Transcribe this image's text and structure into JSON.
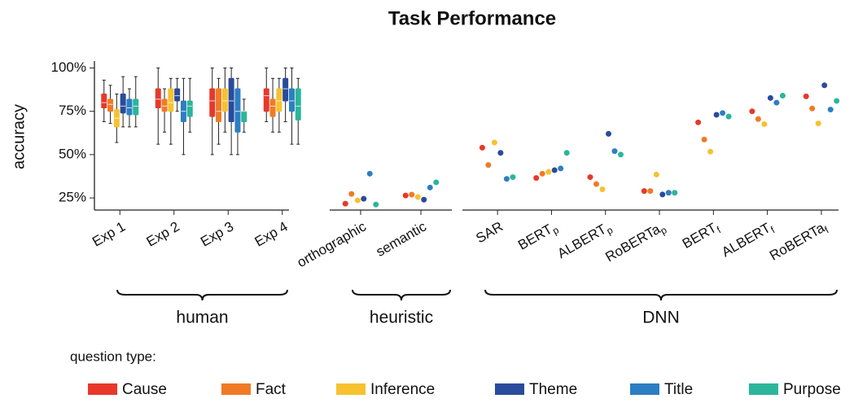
{
  "title": "Task Performance",
  "ylabel": "accuracy",
  "legend_title": "question type:",
  "ylim": [
    18,
    104
  ],
  "yticks": [
    {
      "value": 25,
      "label": "25%"
    },
    {
      "value": 50,
      "label": "50%"
    },
    {
      "value": 75,
      "label": "75%"
    },
    {
      "value": 100,
      "label": "100%"
    }
  ],
  "grid": false,
  "chart_data": [
    {
      "type": "box",
      "group_label": "human",
      "categories": [
        "Exp 1",
        "Exp 2",
        "Exp 3",
        "Exp 4"
      ],
      "series": [
        {
          "name": "Cause",
          "color": "#e8382a",
          "values": [
            {
              "min": 69,
              "q1": 77,
              "median": 80,
              "q3": 85,
              "max": 93
            },
            {
              "min": 56,
              "q1": 77,
              "median": 82,
              "q3": 88,
              "max": 100
            },
            {
              "min": 50,
              "q1": 72,
              "median": 81,
              "q3": 88,
              "max": 100
            },
            {
              "min": 69,
              "q1": 75,
              "median": 84,
              "q3": 88,
              "max": 100
            }
          ]
        },
        {
          "name": "Fact",
          "color": "#f07a26",
          "values": [
            {
              "min": 68,
              "q1": 75,
              "median": 79,
              "q3": 82,
              "max": 90
            },
            {
              "min": 63,
              "q1": 75,
              "median": 78,
              "q3": 82,
              "max": 88
            },
            {
              "min": 56,
              "q1": 69,
              "median": 75,
              "q3": 88,
              "max": 94
            },
            {
              "min": 63,
              "q1": 72,
              "median": 78,
              "q3": 82,
              "max": 94
            }
          ]
        },
        {
          "name": "Inference",
          "color": "#f6c230",
          "values": [
            {
              "min": 57,
              "q1": 66,
              "median": 71,
              "q3": 76,
              "max": 85
            },
            {
              "min": 56,
              "q1": 75,
              "median": 80,
              "q3": 88,
              "max": 94
            },
            {
              "min": 63,
              "q1": 75,
              "median": 81,
              "q3": 88,
              "max": 100
            },
            {
              "min": 63,
              "q1": 75,
              "median": 81,
              "q3": 88,
              "max": 94
            }
          ]
        },
        {
          "name": "Theme",
          "color": "#2a4b9b",
          "values": [
            {
              "min": 66,
              "q1": 74,
              "median": 78,
              "q3": 85,
              "max": 95
            },
            {
              "min": 75,
              "q1": 81,
              "median": 84,
              "q3": 88,
              "max": 94
            },
            {
              "min": 50,
              "q1": 69,
              "median": 81,
              "q3": 94,
              "max": 100
            },
            {
              "min": 69,
              "q1": 81,
              "median": 88,
              "q3": 94,
              "max": 100
            }
          ]
        },
        {
          "name": "Title",
          "color": "#2d7ec2",
          "values": [
            {
              "min": 66,
              "q1": 73,
              "median": 77,
              "q3": 82,
              "max": 88
            },
            {
              "min": 50,
              "q1": 69,
              "median": 75,
              "q3": 81,
              "max": 94
            },
            {
              "min": 50,
              "q1": 63,
              "median": 75,
              "q3": 88,
              "max": 94
            },
            {
              "min": 56,
              "q1": 75,
              "median": 81,
              "q3": 88,
              "max": 100
            }
          ]
        },
        {
          "name": "Purpose",
          "color": "#2bb59a",
          "values": [
            {
              "min": 66,
              "q1": 73,
              "median": 78,
              "q3": 82,
              "max": 95
            },
            {
              "min": 63,
              "q1": 72,
              "median": 78,
              "q3": 81,
              "max": 94
            },
            {
              "min": 63,
              "q1": 69,
              "median": 75,
              "q3": 75,
              "max": 82
            },
            {
              "min": 56,
              "q1": 70,
              "median": 78,
              "q3": 88,
              "max": 94
            }
          ]
        }
      ]
    },
    {
      "type": "scatter",
      "group_label": "heuristic",
      "categories": [
        "orthographic",
        "semantic"
      ],
      "series": [
        {
          "name": "Cause",
          "color": "#e8382a",
          "values": [
            21.7,
            26.4
          ]
        },
        {
          "name": "Fact",
          "color": "#f07a26",
          "values": [
            27.3,
            26.9
          ]
        },
        {
          "name": "Inference",
          "color": "#f6c230",
          "values": [
            23.6,
            25.5
          ]
        },
        {
          "name": "Theme",
          "color": "#2a4b9b",
          "values": [
            24.5,
            24
          ]
        },
        {
          "name": "Title",
          "color": "#2d7ec2",
          "values": [
            39,
            31
          ]
        },
        {
          "name": "Purpose",
          "color": "#2bb59a",
          "values": [
            21.2,
            34
          ]
        }
      ]
    },
    {
      "type": "scatter",
      "group_label": "DNN",
      "categories": [
        "SAR",
        "BERT",
        "ALBERT",
        "RoBERTa",
        "BERT",
        "ALBERT",
        "RoBERTa"
      ],
      "category_subscripts": [
        null,
        "p",
        "p",
        "p",
        "f",
        "f",
        "f"
      ],
      "series": [
        {
          "name": "Cause",
          "color": "#e8382a",
          "values": [
            54,
            36.5,
            37,
            29,
            68.6,
            75,
            83.6
          ]
        },
        {
          "name": "Fact",
          "color": "#f07a26",
          "values": [
            44,
            39,
            33,
            29,
            58.7,
            70.5,
            76.6
          ]
        },
        {
          "name": "Inference",
          "color": "#f6c230",
          "values": [
            57,
            40,
            30,
            38.5,
            51.7,
            67.6,
            68
          ]
        },
        {
          "name": "Theme",
          "color": "#2a4b9b",
          "values": [
            51,
            41,
            62,
            27,
            73,
            82.7,
            90
          ]
        },
        {
          "name": "Title",
          "color": "#2d7ec2",
          "values": [
            36,
            42,
            52,
            28,
            74,
            80,
            76
          ]
        },
        {
          "name": "Purpose",
          "color": "#2bb59a",
          "values": [
            37,
            51,
            50,
            28,
            72,
            84,
            81
          ]
        }
      ]
    }
  ]
}
